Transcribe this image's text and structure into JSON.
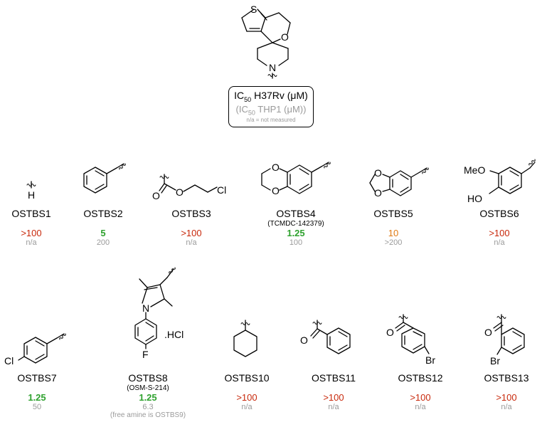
{
  "core": {
    "atoms": {
      "s": "S",
      "o": "O",
      "n": "N"
    }
  },
  "legend": {
    "line1_prefix": "IC",
    "line1_sub": "50",
    "line1_suffix": " H37Rv (μM)",
    "line2_prefix": "(IC",
    "line2_sub": "50",
    "line2_suffix": " THP1 (μM))",
    "line3": "n/a = not measured"
  },
  "compounds": [
    {
      "id": "OSTBS1",
      "ic50": ">100",
      "thp1": "n/a",
      "ic50_color": "#c8290c",
      "atoms": {
        "h": "H"
      }
    },
    {
      "id": "OSTBS2",
      "ic50": "5",
      "thp1": "200",
      "ic50_color": "#2ea12e"
    },
    {
      "id": "OSTBS3",
      "ic50": ">100",
      "thp1": "n/a",
      "ic50_color": "#c8290c",
      "atoms": {
        "o1": "O",
        "o2": "O",
        "cl": "Cl"
      }
    },
    {
      "id": "OSTBS4",
      "alias": "(TCMDC-142379)",
      "ic50": "1.25",
      "thp1": "100",
      "ic50_color": "#2ea12e",
      "atoms": {
        "o1": "O",
        "o2": "O"
      }
    },
    {
      "id": "OSTBS5",
      "ic50": "10",
      "thp1": ">200",
      "ic50_color": "#e07b13",
      "atoms": {
        "o1": "O",
        "o2": "O"
      }
    },
    {
      "id": "OSTBS6",
      "ic50": ">100",
      "thp1": "n/a",
      "ic50_color": "#c8290c",
      "atoms": {
        "meo": "MeO",
        "ho": "HO"
      }
    },
    {
      "id": "OSTBS7",
      "ic50": "1.25",
      "thp1": "50",
      "ic50_color": "#2ea12e",
      "atoms": {
        "cl": "Cl"
      }
    },
    {
      "id": "OSTBS8",
      "alias": "(OSM-S-214)",
      "ic50": "1.25",
      "thp1": "6.3",
      "note": "(free amine is OSTBS9)",
      "ic50_color": "#2ea12e",
      "atoms": {
        "n": "N",
        "f": "F",
        "hcl": ".HCl"
      }
    },
    {
      "id": "OSTBS10",
      "ic50": ">100",
      "thp1": "n/a",
      "ic50_color": "#c8290c"
    },
    {
      "id": "OSTBS11",
      "ic50": ">100",
      "thp1": "n/a",
      "ic50_color": "#c8290c",
      "atoms": {
        "o": "O"
      }
    },
    {
      "id": "OSTBS12",
      "ic50": ">100",
      "thp1": "n/a",
      "ic50_color": "#c8290c",
      "atoms": {
        "o": "O",
        "br": "Br"
      }
    },
    {
      "id": "OSTBS13",
      "ic50": ">100",
      "thp1": "n/a",
      "ic50_color": "#c8290c",
      "atoms": {
        "o": "O",
        "br": "Br"
      }
    }
  ]
}
